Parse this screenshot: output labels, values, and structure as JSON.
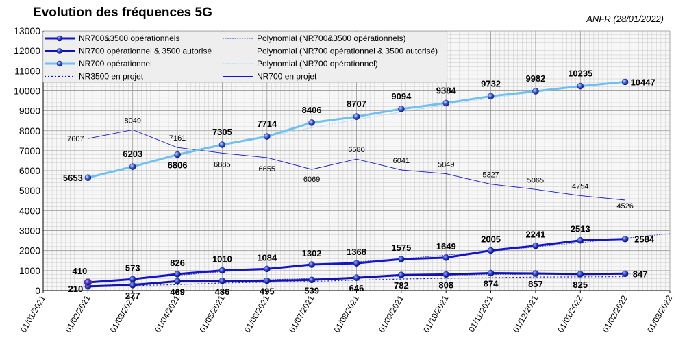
{
  "chart_data": {
    "type": "line",
    "title": "Evolution des fréquences 5G",
    "source": "ANFR (28/01/2022)",
    "ylim": [
      0,
      13000
    ],
    "ytick_step": 1000,
    "yticks": [
      "0",
      "1000",
      "2000",
      "3000",
      "4000",
      "5000",
      "6000",
      "7000",
      "8000",
      "9000",
      "10000",
      "11000",
      "12000",
      "13000"
    ],
    "x_categories": [
      "01/01/2021",
      "01/02/2021",
      "01/03/2021",
      "01/04/2021",
      "01/05/2021",
      "01/06/2021",
      "01/07/2021",
      "01/08/2021",
      "01/09/2021",
      "01/10/2021",
      "01/11/2021",
      "01/12/2021",
      "01/01/2022",
      "01/02/2022",
      "01/03/2022"
    ],
    "grid": true,
    "legend_position": "top-left",
    "series": [
      {
        "name": "NR700&3500 opérationnels",
        "color": "#1515c8",
        "style": "solid-marker",
        "x_index": [
          1,
          2,
          3,
          4,
          5,
          6,
          7,
          8,
          9,
          10,
          11,
          12,
          13
        ],
        "values": [
          410,
          573,
          826,
          1010,
          1084,
          1302,
          1368,
          1575,
          1649,
          2005,
          2241,
          2513,
          2584
        ],
        "labels": [
          "410",
          "573",
          "826",
          "1010",
          "1084",
          "1302",
          "1368",
          "1575",
          "1649",
          "2005",
          "2241",
          "2513",
          "2584"
        ]
      },
      {
        "name": "NR700 opérationnel & 3500 autorisé",
        "color": "#1212b0",
        "style": "solid-marker",
        "x_index": [
          1,
          2,
          3,
          4,
          5,
          6,
          7,
          8,
          9,
          10,
          11,
          12,
          13
        ],
        "values": [
          210,
          277,
          469,
          486,
          495,
          539,
          646,
          782,
          808,
          874,
          857,
          825,
          847
        ],
        "labels": [
          "210",
          "277",
          "469",
          "486",
          "495",
          "539",
          "646",
          "782",
          "808",
          "874",
          "857",
          "825",
          "847"
        ]
      },
      {
        "name": "NR700 opérationnel",
        "color": "#6ec0f0",
        "style": "solid-marker",
        "x_index": [
          1,
          2,
          3,
          4,
          5,
          6,
          7,
          8,
          9,
          10,
          11,
          12,
          13
        ],
        "values": [
          5653,
          6203,
          6806,
          7305,
          7714,
          8406,
          8707,
          9094,
          9384,
          9732,
          9982,
          10235,
          10447
        ],
        "labels": [
          "5653",
          "6203",
          "6806",
          "7305",
          "7714",
          "8406",
          "8707",
          "9094",
          "9384",
          "9732",
          "9982",
          "10235",
          "10447"
        ]
      },
      {
        "name": "NR3500 en projet",
        "color": "#1515c8",
        "style": "dotted",
        "x_index": [
          1,
          2,
          3,
          4,
          5,
          6,
          7,
          8,
          9,
          10,
          11,
          12,
          13
        ],
        "values": [
          200,
          250,
          300,
          380,
          420,
          460,
          520,
          580,
          620,
          650,
          680,
          690,
          700
        ],
        "labels": []
      },
      {
        "name": "NR700 en projet",
        "color": "#1515c8",
        "style": "thin",
        "x_index": [
          1,
          2,
          3,
          4,
          5,
          6,
          7,
          8,
          9,
          10,
          11,
          12,
          13
        ],
        "values": [
          7607,
          8049,
          7161,
          6885,
          6655,
          6069,
          6580,
          6041,
          5849,
          5327,
          5065,
          4754,
          4526
        ],
        "labels": [
          "7607",
          "8049",
          "7161",
          "6885",
          "6655",
          "6069",
          "6580",
          "6041",
          "5849",
          "5327",
          "5065",
          "4754",
          "4526"
        ]
      },
      {
        "name": "Polynomial (NR700&3500 opérationnels)",
        "color": "#3a3ad0",
        "style": "trend",
        "x_index": [
          1,
          2,
          3,
          4,
          5,
          6,
          7,
          8,
          9,
          10,
          11,
          12,
          13,
          14
        ],
        "values": [
          440,
          580,
          760,
          940,
          1110,
          1280,
          1440,
          1600,
          1780,
          1970,
          2180,
          2400,
          2620,
          2850
        ],
        "labels": []
      },
      {
        "name": "Polynomial (NR700 opérationnel & 3500 autorisé)",
        "color": "#3a3ad0",
        "style": "trend",
        "x_index": [
          1,
          2,
          3,
          4,
          5,
          6,
          7,
          8,
          9,
          10,
          11,
          12,
          13,
          14
        ],
        "values": [
          240,
          340,
          420,
          490,
          550,
          610,
          670,
          720,
          770,
          800,
          820,
          840,
          860,
          880
        ],
        "labels": []
      },
      {
        "name": "Polynomial (NR700 opérationnel)",
        "color": "#9fd3f3",
        "style": "trend",
        "x_index": [
          1,
          2,
          3,
          4,
          5,
          6,
          7,
          8,
          9,
          10,
          11,
          12,
          13
        ],
        "values": [
          5680,
          6230,
          6760,
          7260,
          7720,
          8150,
          8560,
          8940,
          9300,
          9630,
          9940,
          10210,
          10460
        ],
        "labels": []
      }
    ],
    "legend_items": [
      {
        "label": "NR700&3500 opérationnels",
        "color": "#1515c8",
        "style": "solid-marker"
      },
      {
        "label": "Polynomial (NR700&3500 opérationnels)",
        "color": "#3a3ad0",
        "style": "trend"
      },
      {
        "label": "NR700 opérationnel & 3500 autorisé",
        "color": "#1212b0",
        "style": "solid-marker"
      },
      {
        "label": "Polynomial (NR700 opérationnel & 3500 autorisé)",
        "color": "#3a3ad0",
        "style": "trend"
      },
      {
        "label": "NR700 opérationnel",
        "color": "#6ec0f0",
        "style": "solid-marker"
      },
      {
        "label": "Polynomial (NR700 opérationnel)",
        "color": "#9fd3f3",
        "style": "trend"
      },
      {
        "label": "NR3500 en projet",
        "color": "#1515c8",
        "style": "dotted"
      },
      {
        "label": "NR700 en projet",
        "color": "#1515c8",
        "style": "thin"
      }
    ]
  }
}
